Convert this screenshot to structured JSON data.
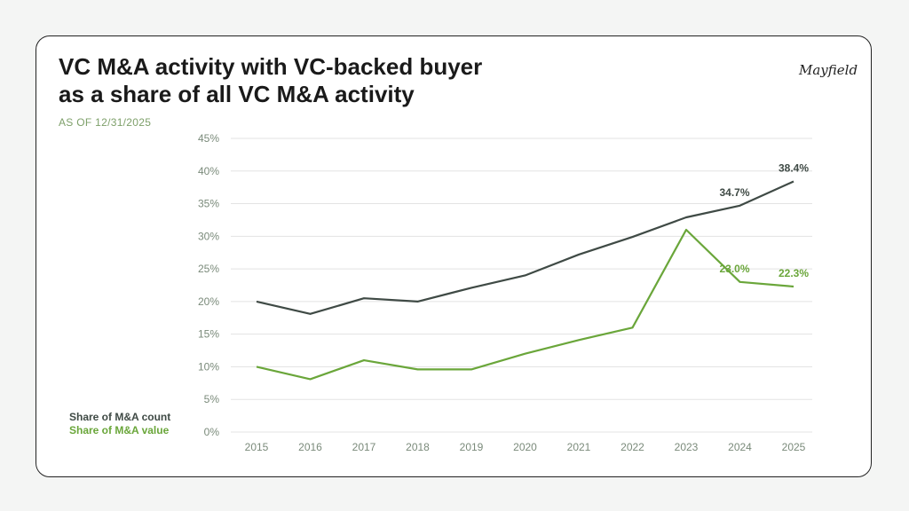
{
  "title_line1": "VC M&A activity with VC-backed buyer",
  "title_line2": "as a share of all VC M&A activity",
  "subtitle": "AS OF 12/31/2025",
  "logo": "Mayfield",
  "chart_data": {
    "type": "line",
    "title": "VC M&A activity with VC-backed buyer as a share of all VC M&A activity",
    "x": [
      "2015",
      "2016",
      "2017",
      "2018",
      "2019",
      "2020",
      "2021",
      "2022",
      "2023",
      "2024",
      "2025"
    ],
    "ylim": [
      0,
      45
    ],
    "yticks": [
      "0%",
      "5%",
      "10%",
      "15%",
      "20%",
      "25%",
      "30%",
      "35%",
      "40%",
      "45%"
    ],
    "grid": true,
    "legend_placement": "bottom-left",
    "series": [
      {
        "name": "Share of M&A count",
        "color": "#3f4a45",
        "values": [
          20.0,
          18.1,
          20.5,
          20.0,
          22.1,
          24.0,
          27.2,
          29.9,
          32.9,
          34.7,
          38.4
        ],
        "labels": {
          "9": "34.7%",
          "10": "38.4%"
        }
      },
      {
        "name": "Share of M&A value",
        "color": "#6aa63a",
        "values": [
          10.0,
          8.1,
          11.0,
          9.6,
          9.6,
          12.0,
          14.1,
          16.0,
          31.0,
          23.0,
          22.3
        ],
        "labels": {
          "9": "23.0%",
          "10": "22.3%"
        }
      }
    ]
  }
}
